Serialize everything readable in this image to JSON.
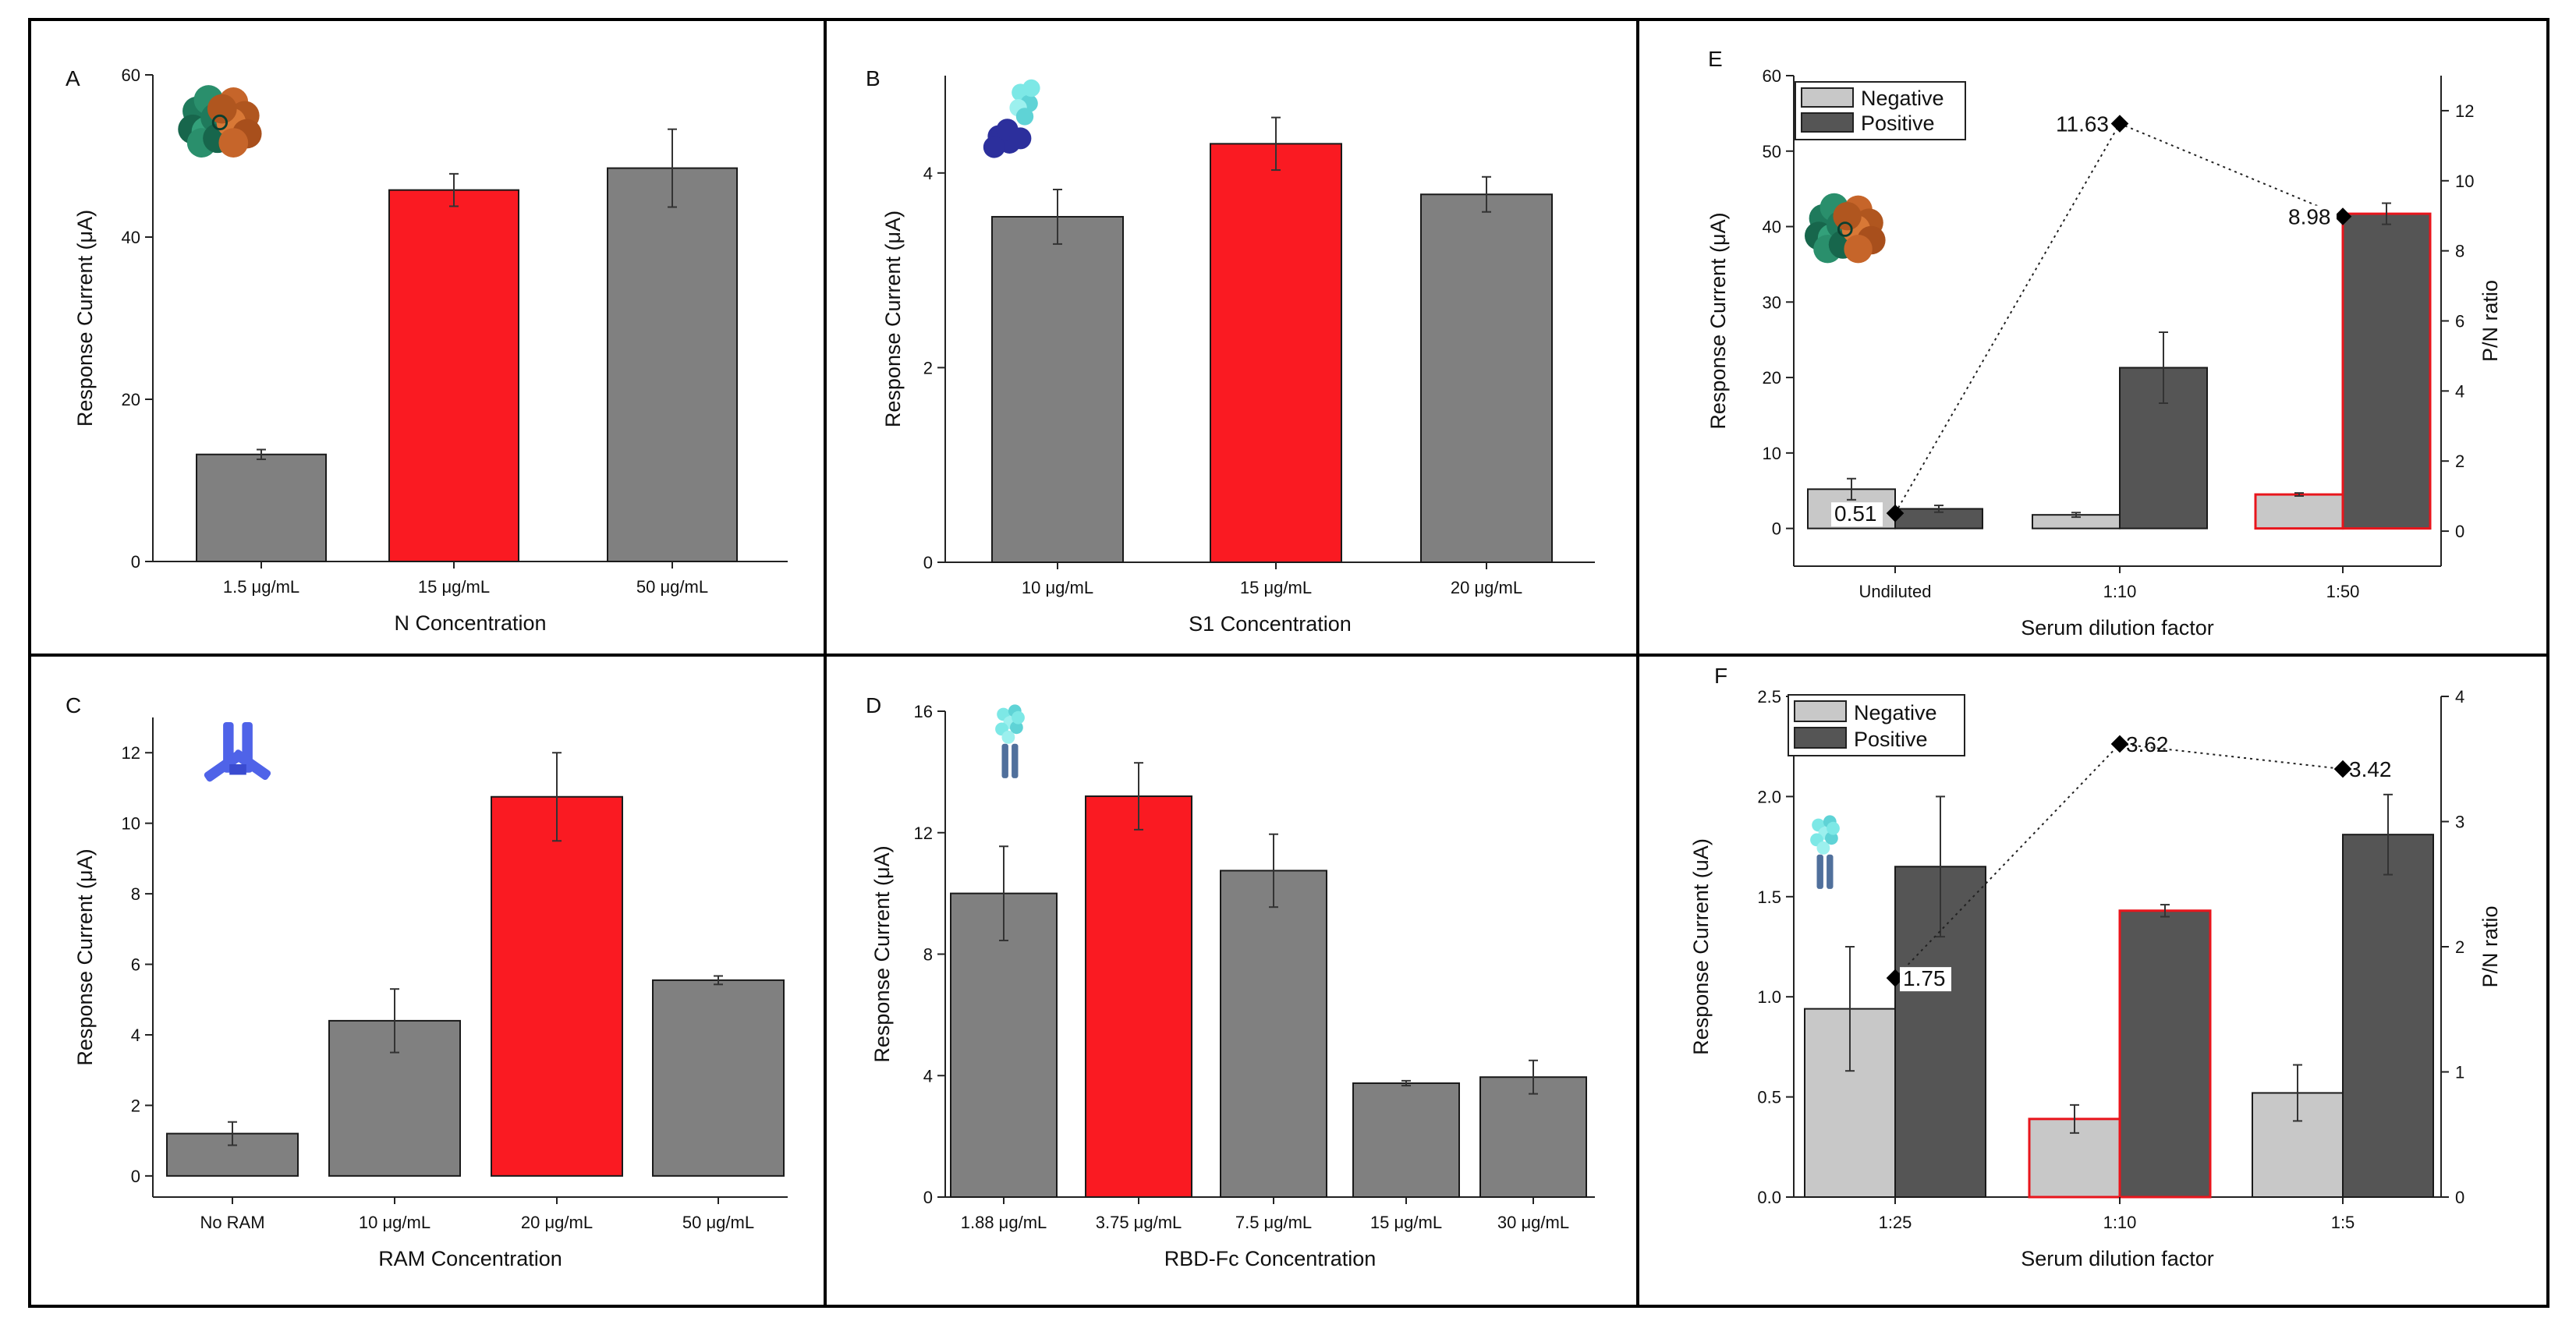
{
  "colors": {
    "gray_bar": "#808080",
    "red_bar": "#fa1a22",
    "light_bar": "#c8c8c8",
    "dark_bar": "#555555",
    "highlight_outline": "#e8151c",
    "axis": "#222222",
    "text": "#111111",
    "frame": "#000000"
  },
  "chart_data": [
    {
      "panel": "A",
      "type": "bar",
      "title": "",
      "xlabel": "N Concentration",
      "ylabel": "Response Current (μA)",
      "ylim": [
        0,
        60
      ],
      "yticks": [
        "0",
        "20",
        "40",
        "60"
      ],
      "ytick_values": [
        0,
        20,
        40,
        60
      ],
      "categories": [
        "1.5 μg/mL",
        "15 μg/mL",
        "50 μg/mL"
      ],
      "values": [
        13.2,
        45.8,
        48.5
      ],
      "errors": [
        0.6,
        2.0,
        4.8
      ],
      "highlight": [
        1
      ],
      "icon": "n-protein-structure-icon"
    },
    {
      "panel": "B",
      "type": "bar",
      "title": "",
      "xlabel": "S1 Concentration",
      "ylabel": "Response Current (μA)",
      "ylim": [
        0,
        5
      ],
      "yticks": [
        "0",
        "2",
        "4"
      ],
      "ytick_values": [
        0,
        2,
        4
      ],
      "categories": [
        "10 μg/mL",
        "15 μg/mL",
        "20 μg/mL"
      ],
      "values": [
        3.55,
        4.3,
        3.78
      ],
      "errors": [
        0.28,
        0.27,
        0.18
      ],
      "highlight": [
        1
      ],
      "icon": "s1-protein-structure-icon"
    },
    {
      "panel": "C",
      "type": "bar",
      "title": "",
      "xlabel": "RAM Concentration",
      "ylabel": "Response Current (μA)",
      "ylim": [
        -0.6,
        13
      ],
      "yticks": [
        "0",
        "2",
        "4",
        "6",
        "8",
        "10",
        "12"
      ],
      "ytick_values": [
        0,
        2,
        4,
        6,
        8,
        10,
        12
      ],
      "categories": [
        "No RAM",
        "10 μg/mL",
        "20 μg/mL",
        "50 μg/mL"
      ],
      "values": [
        1.2,
        4.4,
        10.75,
        5.55
      ],
      "errors": [
        0.33,
        0.9,
        1.25,
        0.12
      ],
      "highlight": [
        2
      ],
      "icon": "antibody-icon"
    },
    {
      "panel": "D",
      "type": "bar",
      "title": "",
      "xlabel": "RBD-Fc Concentration",
      "ylabel": "Response Current (μA)",
      "ylim": [
        0,
        16
      ],
      "yticks": [
        "0",
        "4",
        "8",
        "12",
        "16"
      ],
      "ytick_values": [
        0,
        4,
        8,
        12,
        16
      ],
      "categories": [
        "1.88 μg/mL",
        "3.75 μg/mL",
        "7.5 μg/mL",
        "15 μg/mL",
        "30 μg/mL"
      ],
      "values": [
        10.0,
        13.2,
        10.75,
        3.75,
        3.95
      ],
      "errors": [
        1.55,
        1.1,
        1.2,
        0.08,
        0.55
      ],
      "highlight": [
        1
      ],
      "icon": "rbd-fc-structure-icon"
    },
    {
      "panel": "E",
      "type": "bar",
      "title": "",
      "xlabel": "Serum dilution factor",
      "ylabel": "Response Current (μA)",
      "y2label": "P/N ratio",
      "ylim": [
        -5,
        60
      ],
      "yticks": [
        "0",
        "10",
        "20",
        "30",
        "40",
        "50",
        "60"
      ],
      "ytick_values": [
        0,
        10,
        20,
        30,
        40,
        50,
        60
      ],
      "y2lim": [
        -1,
        13
      ],
      "y2ticks": [
        "0",
        "2",
        "4",
        "6",
        "8",
        "10",
        "12"
      ],
      "y2tick_values": [
        0,
        2,
        4,
        6,
        8,
        10,
        12
      ],
      "categories": [
        "Undiluted",
        "1:10",
        "1:50"
      ],
      "series": [
        {
          "name": "Negative",
          "values": [
            5.2,
            1.8,
            4.5
          ],
          "errors": [
            1.4,
            0.3,
            0.2
          ]
        },
        {
          "name": "Positive",
          "values": [
            2.6,
            21.3,
            41.7
          ],
          "errors": [
            0.45,
            4.7,
            1.4
          ]
        }
      ],
      "ratio": {
        "values": [
          0.51,
          11.63,
          8.98
        ],
        "labels": [
          "0.51",
          "11.63",
          "8.98"
        ]
      },
      "highlight_group": 2,
      "legend": "top-left",
      "icon": "n-protein-structure-icon"
    },
    {
      "panel": "F",
      "type": "bar",
      "title": "",
      "xlabel": "Serum dilution factor",
      "ylabel": "Response Current (uA)",
      "y2label": "P/N ratio",
      "ylim": [
        0,
        2.5
      ],
      "yticks": [
        "0.0",
        "0.5",
        "1.0",
        "1.5",
        "2.0",
        "2.5"
      ],
      "ytick_values": [
        0,
        0.5,
        1.0,
        1.5,
        2.0,
        2.5
      ],
      "y2lim": [
        0,
        4
      ],
      "y2ticks": [
        "0",
        "1",
        "2",
        "3",
        "4"
      ],
      "y2tick_values": [
        0,
        1,
        2,
        3,
        4
      ],
      "categories": [
        "1:25",
        "1:10",
        "1:5"
      ],
      "series": [
        {
          "name": "Negative",
          "values": [
            0.94,
            0.39,
            0.52
          ],
          "errors": [
            0.31,
            0.07,
            0.14
          ]
        },
        {
          "name": "Positive",
          "values": [
            1.65,
            1.43,
            1.81
          ],
          "errors": [
            0.35,
            0.03,
            0.2
          ]
        }
      ],
      "ratio": {
        "values": [
          1.75,
          3.62,
          3.42
        ],
        "labels": [
          "1.75",
          "3.62",
          "3.42"
        ]
      },
      "highlight_group": 1,
      "legend": "top-left",
      "icon": "rbd-fc-structure-icon"
    }
  ]
}
